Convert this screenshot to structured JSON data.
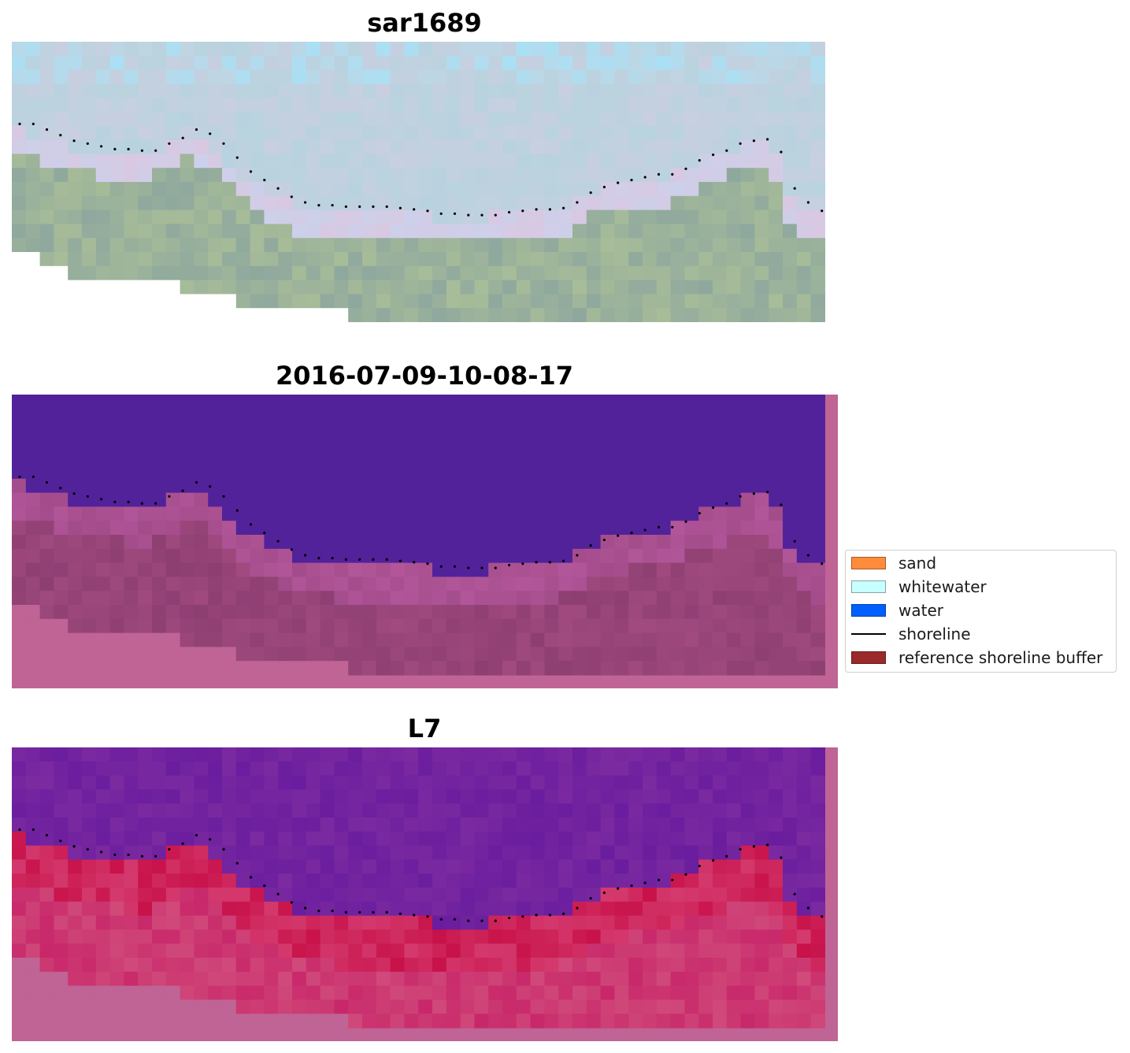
{
  "panels": [
    {
      "title": "sar1689"
    },
    {
      "title": "2016-07-09-10-08-17"
    },
    {
      "title": "L7"
    }
  ],
  "legend": {
    "items": [
      {
        "label": "sand",
        "color": "#ff8c3a",
        "kind": "patch"
      },
      {
        "label": "whitewater",
        "color": "#c8ffff",
        "kind": "patch"
      },
      {
        "label": "water",
        "color": "#0060ff",
        "kind": "patch"
      },
      {
        "label": "shoreline",
        "color": "#000000",
        "kind": "line"
      },
      {
        "label": "reference shoreline buffer",
        "color": "#9b2a2a",
        "kind": "patch"
      }
    ]
  },
  "colors": {
    "water_overlay": "#52229a",
    "buffer_pink": "#bf6495",
    "background": "#ffffff"
  }
}
